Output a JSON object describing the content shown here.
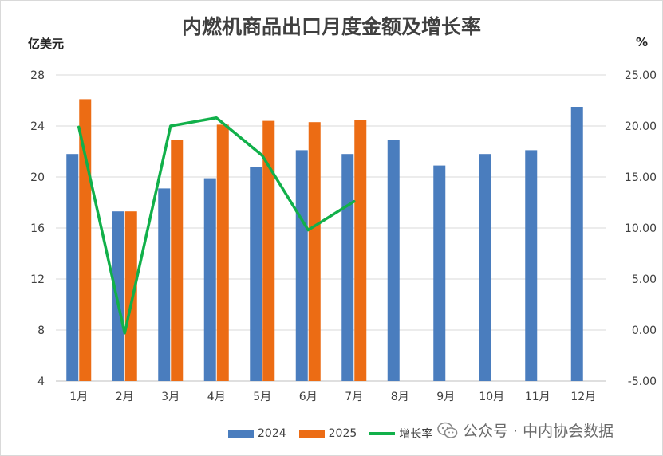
{
  "chart_data": {
    "type": "bar",
    "title": "内燃机商品出口月度金额及增长率",
    "ylabel": "亿美元",
    "y2label": "%",
    "categories": [
      "1月",
      "2月",
      "3月",
      "4月",
      "5月",
      "6月",
      "7月",
      "8月",
      "9月",
      "10月",
      "11月",
      "12月"
    ],
    "ylim": [
      4,
      28
    ],
    "yticks": [
      "28",
      "24",
      "20",
      "16",
      "12",
      "8",
      "4"
    ],
    "y2lim": [
      -5,
      25
    ],
    "y2ticks": [
      "25.00",
      "20.00",
      "15.00",
      "10.00",
      "5.00",
      "0.00",
      "-5.00"
    ],
    "series": [
      {
        "name": "2024",
        "type": "bar",
        "axis": "left",
        "color": "#4a7dbe",
        "values": [
          21.8,
          17.3,
          19.1,
          19.9,
          20.8,
          22.1,
          21.8,
          22.9,
          20.9,
          21.8,
          22.1,
          25.5
        ]
      },
      {
        "name": "2025",
        "type": "bar",
        "axis": "left",
        "color": "#ec6c14",
        "values": [
          26.1,
          17.3,
          22.9,
          24.1,
          24.4,
          24.3,
          24.5,
          null,
          null,
          null,
          null,
          null
        ]
      },
      {
        "name": "增长率",
        "type": "line",
        "axis": "right",
        "color": "#11b04a",
        "values": [
          19.9,
          -0.3,
          20.0,
          20.8,
          17.1,
          9.8,
          12.6,
          null,
          null,
          null,
          null,
          null
        ]
      }
    ],
    "grid": true,
    "legend": "bottom"
  },
  "watermark": "公众号 · 中内协会数据"
}
